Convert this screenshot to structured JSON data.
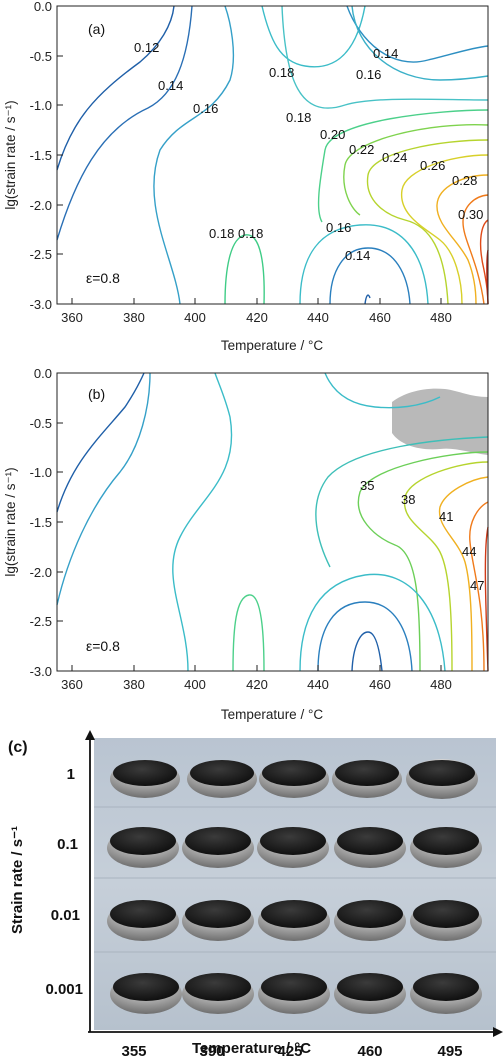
{
  "figure": {
    "panel_a": {
      "label": "(a)",
      "strain": "ε=0.8",
      "contour_labels": [
        "0.12",
        "0.14",
        "0.14",
        "0.16",
        "0.16",
        "0.18",
        "0.18",
        "0.18",
        "0.20",
        "0.22",
        "0.24",
        "0.26",
        "0.28",
        "0.30",
        "0.18",
        "0.16",
        "0.14"
      ]
    },
    "panel_b": {
      "label": "(b)",
      "strain": "ε=0.8",
      "contour_labels": [
        "35",
        "38",
        "41",
        "44",
        "47"
      ]
    },
    "panel_c": {
      "label": "(c)",
      "ylabel": "Strain rate / s⁻¹",
      "xlabel": "Temperature / °C",
      "rows": [
        "1",
        "0.1",
        "0.01",
        "0.001"
      ],
      "cols": [
        "355",
        "390",
        "425",
        "460",
        "495"
      ]
    }
  },
  "chart_data": [
    {
      "type": "contour",
      "title": "",
      "xlabel": "Temperature / °C",
      "ylabel": "lg(strain rate / s⁻¹)",
      "xlim": [
        355,
        495
      ],
      "ylim": [
        -3.0,
        0.0
      ],
      "xticks": [
        "360",
        "380",
        "400",
        "420",
        "440",
        "460",
        "480"
      ],
      "yticks": [
        "0.0",
        "-0.5",
        "-1.0",
        "-1.5",
        "-2.0",
        "-2.5",
        "-3.0"
      ],
      "levels": [
        0.12,
        0.14,
        0.16,
        0.18,
        0.2,
        0.22,
        0.24,
        0.26,
        0.28,
        0.3
      ]
    },
    {
      "type": "contour",
      "title": "",
      "xlabel": "Temperature / °C",
      "ylabel": "lg(strain rate / s⁻¹)",
      "xlim": [
        355,
        495
      ],
      "ylim": [
        -3.0,
        0.0
      ],
      "xticks": [
        "360",
        "380",
        "400",
        "420",
        "440",
        "460",
        "480"
      ],
      "yticks": [
        "0.0",
        "-0.5",
        "-1.0",
        "-1.5",
        "-2.0",
        "-2.5",
        "-3.0"
      ],
      "levels": [
        35,
        38,
        41,
        44,
        47
      ]
    }
  ]
}
